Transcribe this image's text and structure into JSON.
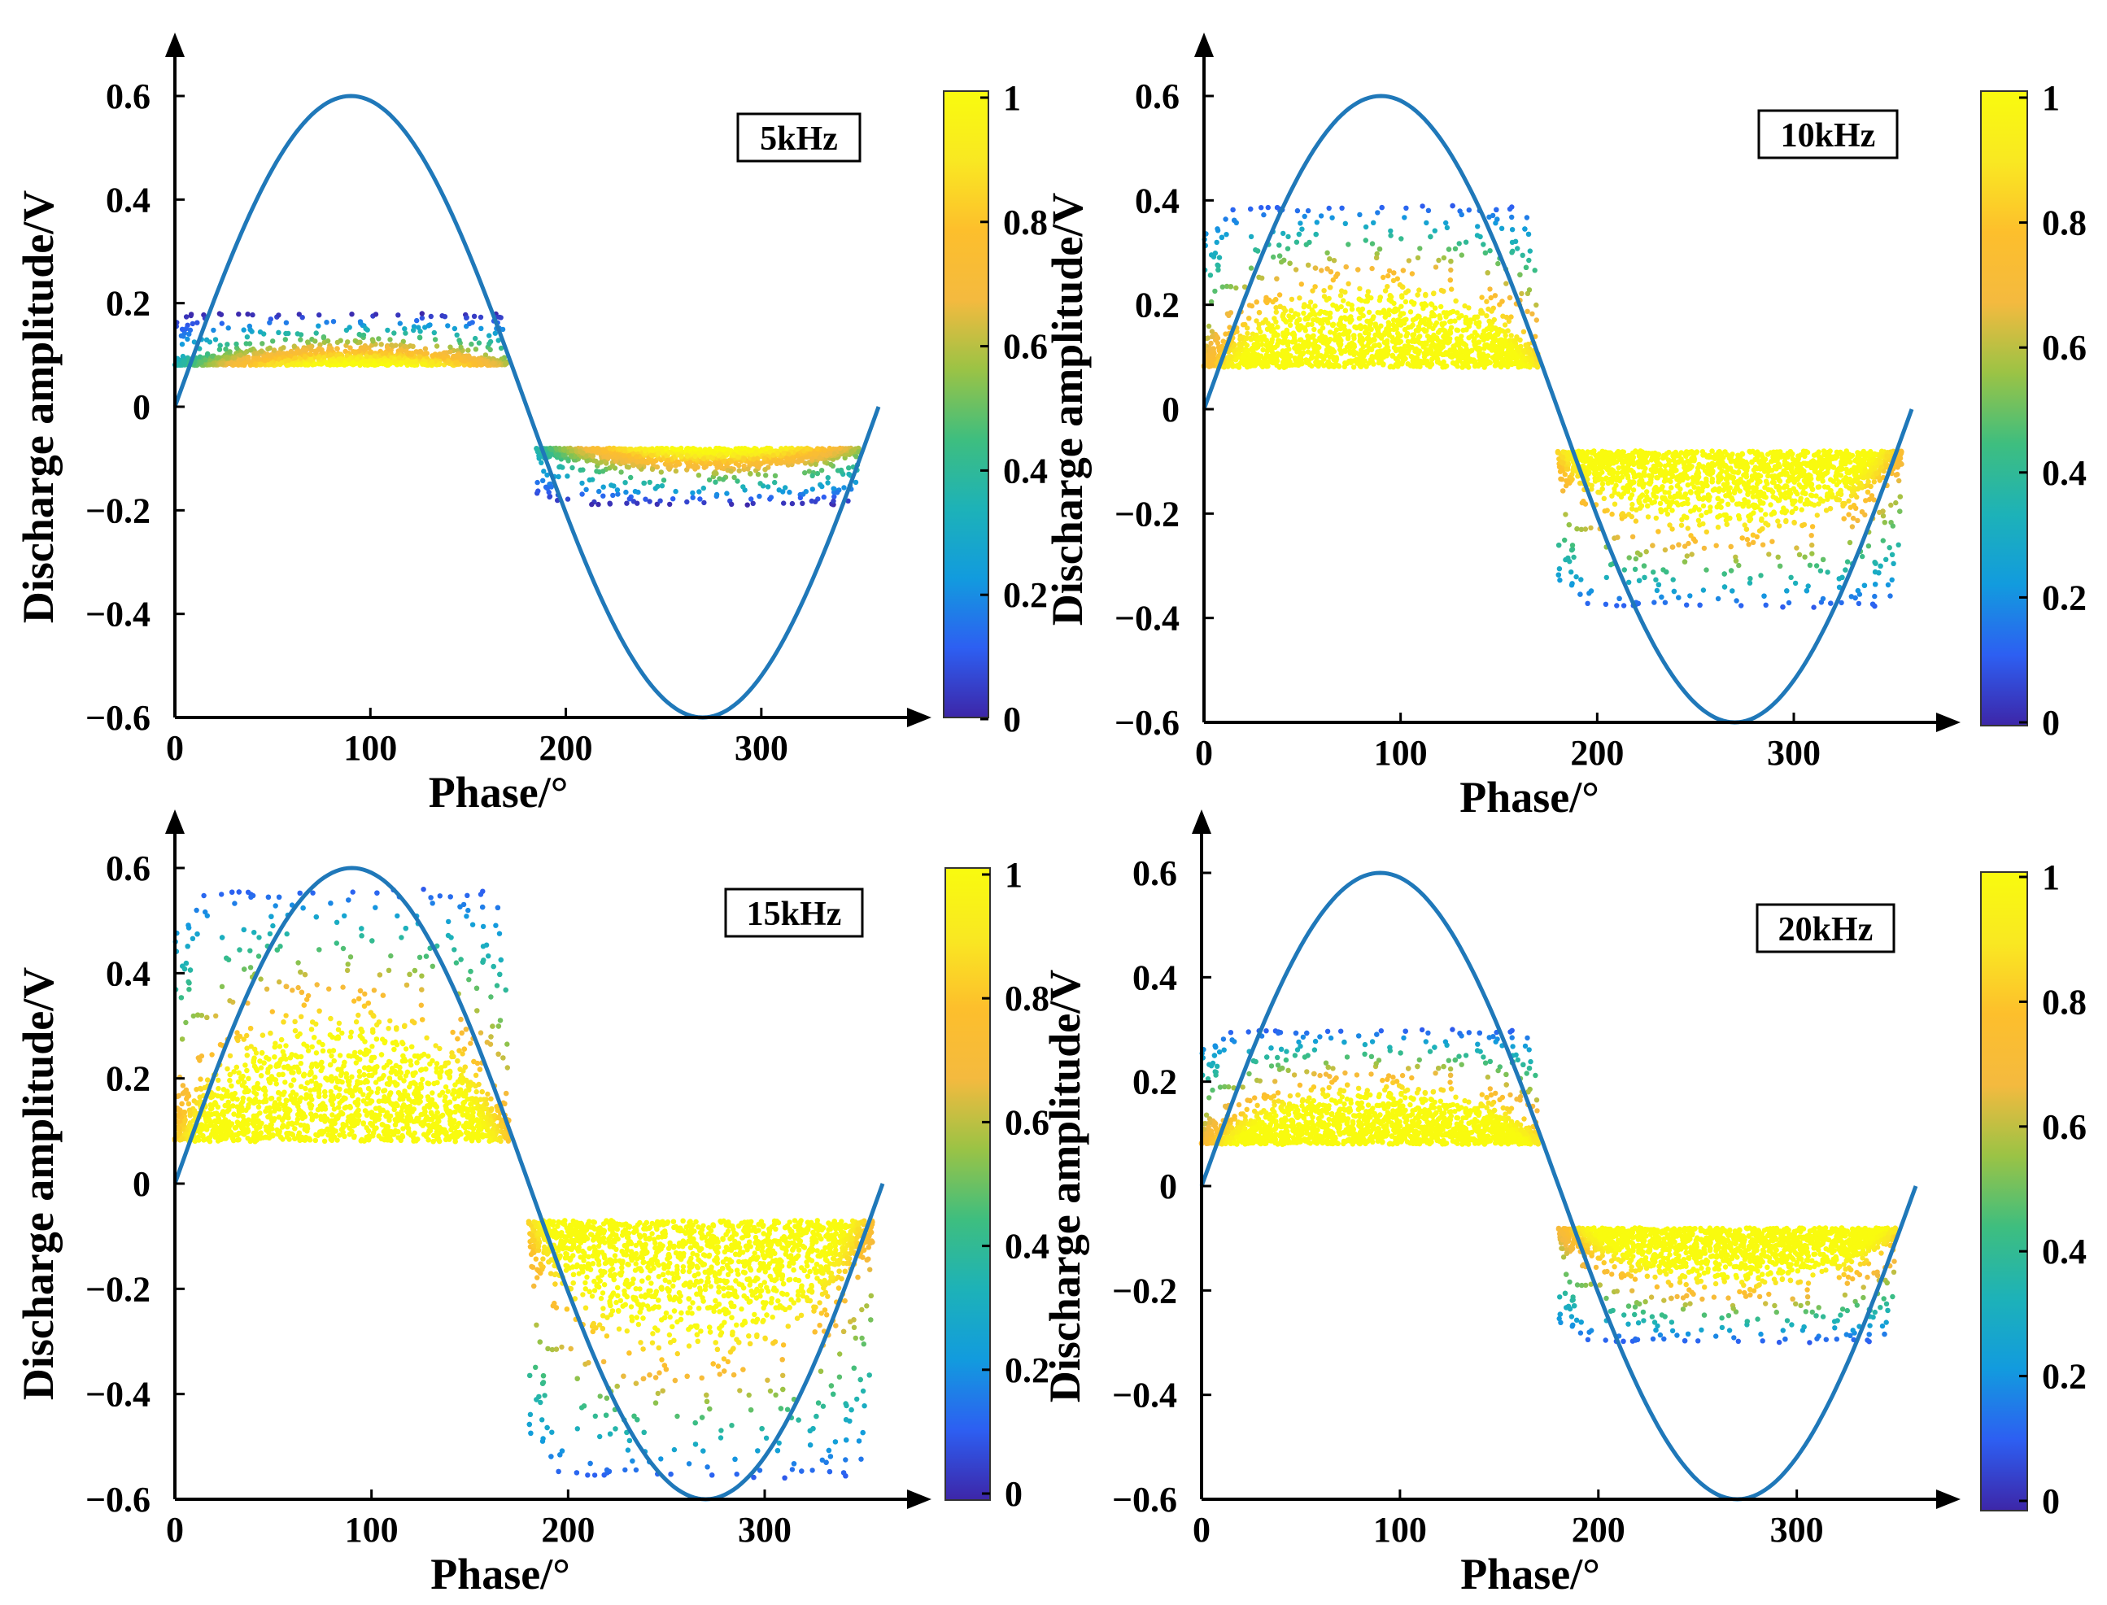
{
  "colors": {
    "sine": "#1f78b9",
    "axis": "#000000",
    "colormap": [
      "#3d26a8",
      "#2d5ff2",
      "#129bde",
      "#1db2b8",
      "#3ebe7f",
      "#9bc345",
      "#f4ba3f",
      "#fdbf2c",
      "#f9e822",
      "#f9fb0e"
    ]
  },
  "chart_data": [
    {
      "type": "scatter",
      "panel": "top-left",
      "label": "5kHz",
      "xlabel": "Phase/°",
      "ylabel": "Discharge amplitude/V",
      "xlim": [
        0,
        360
      ],
      "ylim": [
        -0.6,
        0.6
      ],
      "xticks": [
        "0",
        "100",
        "200",
        "300"
      ],
      "yticks": [
        "0.6",
        "0.4",
        "0.2",
        "0",
        "−0.2",
        "−0.4",
        "−0.6"
      ],
      "colorbar": {
        "ticks": [
          "1",
          "0.8",
          "0.6",
          "0.4",
          "0.2",
          "0"
        ],
        "range": [
          0,
          1
        ]
      },
      "series": [
        {
          "type": "line",
          "function": "0.6*sin(phase)",
          "x": [
            0,
            360
          ],
          "y_amplitude": 0.6
        },
        {
          "type": "scatter-density",
          "region": "positive half-cycle",
          "x": [
            0,
            170
          ],
          "y": [
            0.08,
            0.18
          ],
          "peak_density_x": 95
        },
        {
          "type": "scatter-density",
          "region": "negative half-cycle",
          "x": [
            185,
            350
          ],
          "y": [
            -0.19,
            -0.08
          ],
          "peak_density_x": 275
        }
      ]
    },
    {
      "type": "scatter",
      "panel": "top-right",
      "label": "10kHz",
      "xlabel": "Phase/°",
      "ylabel": "Discharge amplitude/V",
      "xlim": [
        0,
        360
      ],
      "ylim": [
        -0.6,
        0.6
      ],
      "xticks": [
        "0",
        "100",
        "200",
        "300"
      ],
      "yticks": [
        "0.6",
        "0.4",
        "0.2",
        "0",
        "−0.2",
        "−0.4",
        "−0.6"
      ],
      "colorbar": {
        "ticks": [
          "1",
          "0.8",
          "0.6",
          "0.4",
          "0.2",
          "0"
        ],
        "range": [
          0,
          1
        ]
      },
      "series": [
        {
          "type": "line",
          "function": "0.6*sin(phase)",
          "x": [
            0,
            360
          ],
          "y_amplitude": 0.6
        },
        {
          "type": "scatter-density",
          "region": "positive half-cycle",
          "x": [
            0,
            170
          ],
          "y": [
            0.08,
            0.39
          ],
          "peak_density_x": 90
        },
        {
          "type": "scatter-density",
          "region": "negative half-cycle",
          "x": [
            180,
            355
          ],
          "y": [
            -0.38,
            -0.08
          ],
          "peak_density_x": 265
        }
      ]
    },
    {
      "type": "scatter",
      "panel": "bottom-left",
      "label": "15kHz",
      "xlabel": "Phase/°",
      "ylabel": "Discharge amplitude/V",
      "xlim": [
        0,
        360
      ],
      "ylim": [
        -0.6,
        0.6
      ],
      "xticks": [
        "0",
        "100",
        "200",
        "300"
      ],
      "yticks": [
        "0.6",
        "0.4",
        "0.2",
        "0",
        "−0.2",
        "−0.4",
        "−0.6"
      ],
      "colorbar": {
        "ticks": [
          "1",
          "0.8",
          "0.6",
          "0.4",
          "0.2",
          "0"
        ],
        "range": [
          0,
          1
        ]
      },
      "series": [
        {
          "type": "line",
          "function": "0.6*sin(phase)",
          "x": [
            0,
            360
          ],
          "y_amplitude": 0.6
        },
        {
          "type": "scatter-density",
          "region": "positive half-cycle",
          "x": [
            0,
            170
          ],
          "y": [
            0.08,
            0.56
          ],
          "peak_density_x": 85
        },
        {
          "type": "scatter-density",
          "region": "negative half-cycle",
          "x": [
            180,
            355
          ],
          "y": [
            -0.56,
            -0.07
          ],
          "peak_density_x": 265
        }
      ]
    },
    {
      "type": "scatter",
      "panel": "bottom-right",
      "label": "20kHz",
      "xlabel": "Phase/°",
      "ylabel": "Discharge amplitude/V",
      "xlim": [
        0,
        360
      ],
      "ylim": [
        -0.6,
        0.6
      ],
      "xticks": [
        "0",
        "100",
        "200",
        "300"
      ],
      "yticks": [
        "0.6",
        "0.4",
        "0.2",
        "0",
        "−0.2",
        "−0.4",
        "−0.6"
      ],
      "colorbar": {
        "ticks": [
          "1",
          "0.8",
          "0.6",
          "0.4",
          "0.2",
          "0"
        ],
        "range": [
          0,
          1
        ]
      },
      "series": [
        {
          "type": "line",
          "function": "0.6*sin(phase)",
          "x": [
            0,
            360
          ],
          "y_amplitude": 0.6
        },
        {
          "type": "scatter-density",
          "region": "positive half-cycle",
          "x": [
            0,
            170
          ],
          "y": [
            0.08,
            0.3
          ],
          "peak_density_x": 90
        },
        {
          "type": "scatter-density",
          "region": "negative half-cycle",
          "x": [
            180,
            350
          ],
          "y": [
            -0.3,
            -0.08
          ],
          "peak_density_x": 270
        }
      ]
    }
  ]
}
